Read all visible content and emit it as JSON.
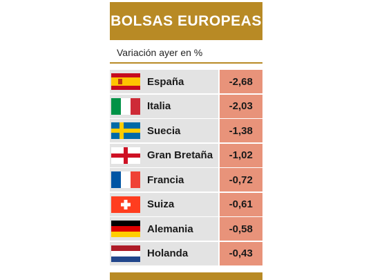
{
  "header": {
    "title": "BOLSAS EUROPEAS"
  },
  "subtitle": "Variación ayer en %",
  "colors": {
    "header_bg": "#b88a25",
    "value_bg": "#e8937a",
    "row_bg": "#e3e3e3"
  },
  "chart_data": {
    "type": "table",
    "title": "BOLSAS EUROPEAS",
    "subtitle": "Variación ayer en %",
    "categories": [
      "España",
      "Italia",
      "Suecia",
      "Gran Bretaña",
      "Francia",
      "Suiza",
      "Alemania",
      "Holanda"
    ],
    "values": [
      "-2,68",
      "-2,03",
      "-1,38",
      "-1,02",
      "-0,72",
      "-0,61",
      "-0,58",
      "-0,43"
    ],
    "flags": [
      "spain-flag-icon",
      "italy-flag-icon",
      "sweden-flag-icon",
      "england-flag-icon",
      "france-flag-icon",
      "switzerland-flag-icon",
      "germany-flag-icon",
      "netherlands-flag-icon"
    ]
  }
}
